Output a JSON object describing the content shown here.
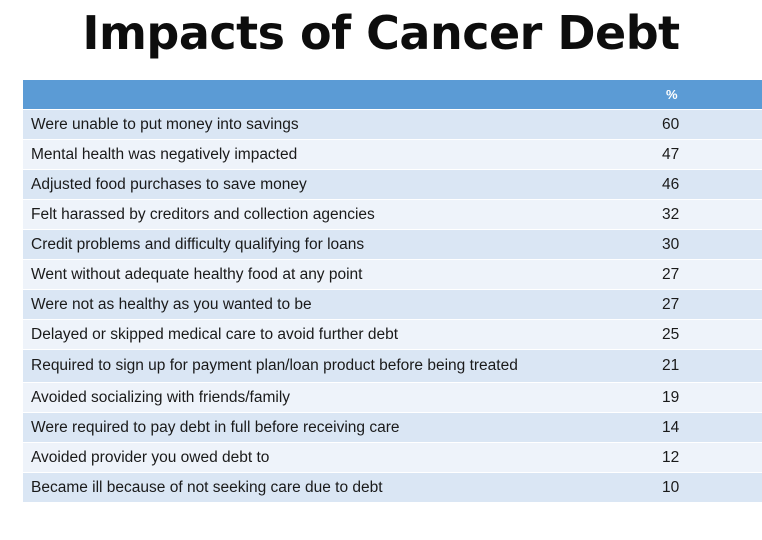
{
  "chart_data": {
    "type": "table",
    "title": "Impacts of Cancer Debt",
    "columns": [
      "",
      "%"
    ],
    "rows": [
      {
        "label": "Were unable to put money into savings",
        "value": 60
      },
      {
        "label": "Mental health was negatively impacted",
        "value": 47
      },
      {
        "label": "Adjusted food purchases to save money",
        "value": 46
      },
      {
        "label": "Felt harassed by creditors and collection agencies",
        "value": 32
      },
      {
        "label": "Credit problems and difficulty qualifying for loans",
        "value": 30
      },
      {
        "label": "Went without adequate healthy food at any point",
        "value": 27
      },
      {
        "label": "Were not as healthy as you wanted to be",
        "value": 27
      },
      {
        "label": "Delayed or skipped medical care to avoid further debt",
        "value": 25
      },
      {
        "label": "Required to sign up for payment plan/loan product before being treated",
        "value": 21
      },
      {
        "label": "Avoided socializing with friends/family",
        "value": 19
      },
      {
        "label": "Were required to pay debt in full before receiving care",
        "value": 14
      },
      {
        "label": "Avoided provider you owed debt to",
        "value": 12
      },
      {
        "label": "Became ill because of not seeking care due to debt",
        "value": 10
      }
    ],
    "colors": {
      "header": "#5b9bd5",
      "row_odd": "#dae6f4",
      "row_even": "#eef3fa"
    }
  }
}
